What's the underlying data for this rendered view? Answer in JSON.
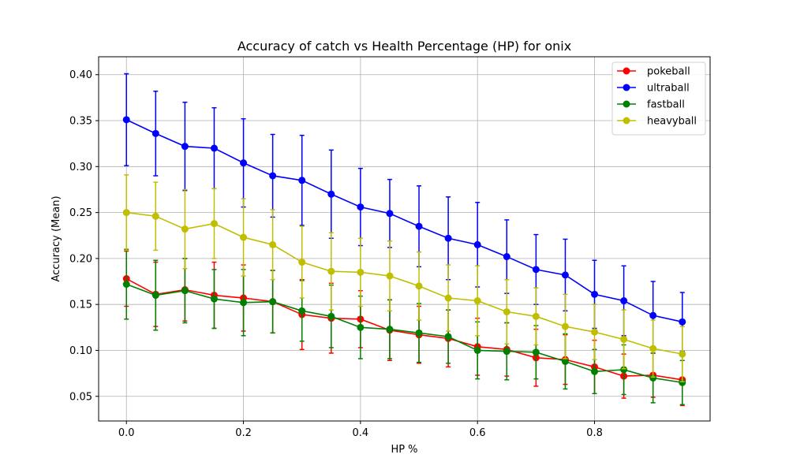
{
  "chart_data": {
    "type": "line",
    "title": "Accuracy of catch vs Health Percentage (HP) for onix",
    "xlabel": "HP %",
    "ylabel": "Accuracy (Mean)",
    "xlim": [
      -0.0475,
      0.9975
    ],
    "ylim": [
      0.0232,
      0.4195
    ],
    "xticks": [
      0.0,
      0.2,
      0.4,
      0.6,
      0.8
    ],
    "xtick_labels": [
      "0.0",
      "0.2",
      "0.4",
      "0.6",
      "0.8"
    ],
    "yticks": [
      0.05,
      0.1,
      0.15,
      0.2,
      0.25,
      0.3,
      0.35,
      0.4
    ],
    "ytick_labels": [
      "0.05",
      "0.10",
      "0.15",
      "0.20",
      "0.25",
      "0.30",
      "0.35",
      "0.40"
    ],
    "grid": true,
    "legend_position": "top-right",
    "x": [
      0.0,
      0.05,
      0.1,
      0.15,
      0.2,
      0.25,
      0.3,
      0.35,
      0.4,
      0.45,
      0.5,
      0.55,
      0.6,
      0.65,
      0.7,
      0.75,
      0.8,
      0.85,
      0.9,
      0.95
    ],
    "series": [
      {
        "name": "pokeball",
        "color": "#ff0000",
        "values": [
          0.178,
          0.161,
          0.166,
          0.16,
          0.157,
          0.153,
          0.139,
          0.135,
          0.134,
          0.122,
          0.117,
          0.113,
          0.104,
          0.101,
          0.092,
          0.09,
          0.082,
          0.072,
          0.073,
          0.068
        ],
        "errors": [
          0.03,
          0.035,
          0.034,
          0.036,
          0.036,
          0.034,
          0.038,
          0.038,
          0.031,
          0.033,
          0.031,
          0.031,
          0.031,
          0.029,
          0.031,
          0.027,
          0.029,
          0.024,
          0.024,
          0.028
        ]
      },
      {
        "name": "ultraball",
        "color": "#0000ff",
        "values": [
          0.351,
          0.336,
          0.322,
          0.32,
          0.304,
          0.29,
          0.285,
          0.27,
          0.256,
          0.249,
          0.235,
          0.222,
          0.215,
          0.202,
          0.188,
          0.182,
          0.161,
          0.154,
          0.138,
          0.131
        ],
        "errors": [
          0.05,
          0.046,
          0.048,
          0.044,
          0.048,
          0.045,
          0.049,
          0.048,
          0.042,
          0.037,
          0.044,
          0.045,
          0.046,
          0.04,
          0.038,
          0.039,
          0.037,
          0.038,
          0.037,
          0.032
        ]
      },
      {
        "name": "fastball",
        "color": "#008000",
        "values": [
          0.172,
          0.16,
          0.165,
          0.156,
          0.152,
          0.153,
          0.143,
          0.137,
          0.125,
          0.123,
          0.119,
          0.115,
          0.1,
          0.099,
          0.098,
          0.088,
          0.077,
          0.079,
          0.07,
          0.065
        ],
        "errors": [
          0.038,
          0.038,
          0.035,
          0.032,
          0.036,
          0.034,
          0.033,
          0.034,
          0.034,
          0.032,
          0.032,
          0.029,
          0.031,
          0.031,
          0.029,
          0.03,
          0.024,
          0.027,
          0.027,
          0.024
        ]
      },
      {
        "name": "heavyball",
        "color": "#bfbf00",
        "values": [
          0.25,
          0.246,
          0.232,
          0.238,
          0.223,
          0.215,
          0.196,
          0.186,
          0.185,
          0.181,
          0.17,
          0.157,
          0.154,
          0.142,
          0.137,
          0.126,
          0.12,
          0.112,
          0.102,
          0.096
        ],
        "errors": [
          0.041,
          0.037,
          0.043,
          0.038,
          0.042,
          0.038,
          0.039,
          0.042,
          0.037,
          0.038,
          0.037,
          0.036,
          0.038,
          0.035,
          0.031,
          0.035,
          0.03,
          0.032,
          0.031,
          0.03
        ]
      }
    ]
  }
}
